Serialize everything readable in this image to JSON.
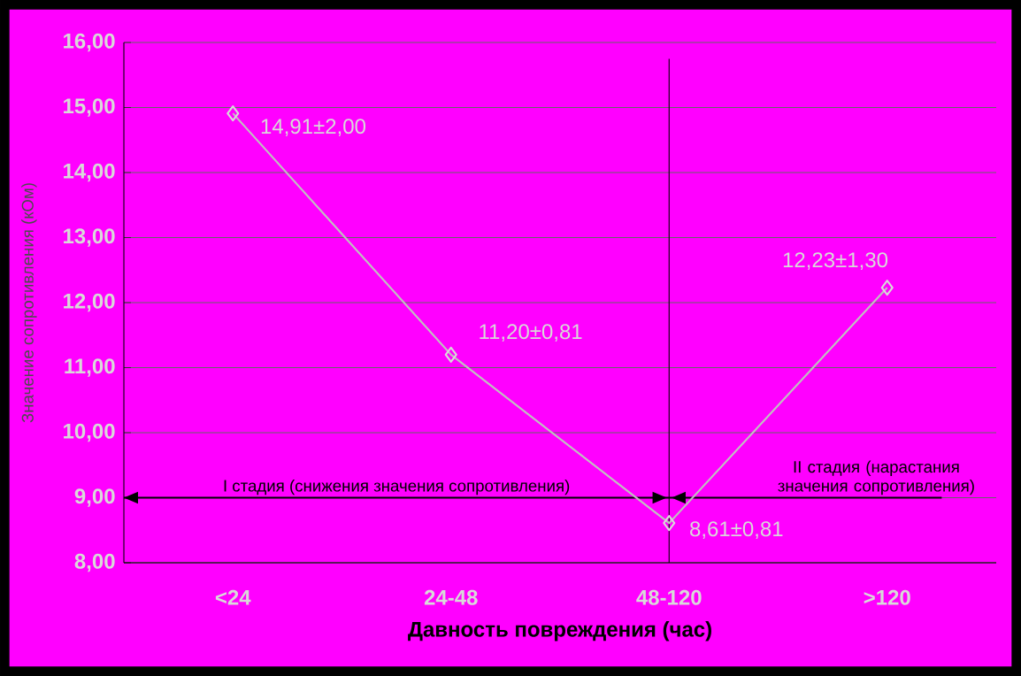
{
  "chart_data": {
    "type": "line",
    "xlabel": "Давность повреждения (час)",
    "ylabel": "Значение сопротивления (кОм)",
    "categories": [
      "<24",
      "24-48",
      "48-120",
      ">120"
    ],
    "series": [
      {
        "color": "#c0c0c0",
        "values": [
          14.91,
          11.2,
          8.61,
          12.23
        ],
        "value_labels": [
          "14,91±2,00",
          "11,20±0,81",
          "8,61±0,81",
          "12,23±1,30"
        ]
      }
    ],
    "marker": "diamond",
    "ylim": [
      8,
      16
    ],
    "yticks": [
      {
        "value": 8,
        "label": "8,00"
      },
      {
        "value": 9,
        "label": "9,00"
      },
      {
        "value": 10,
        "label": "10,00"
      },
      {
        "value": 11,
        "label": "11,00"
      },
      {
        "value": 12,
        "label": "12,00"
      },
      {
        "value": 13,
        "label": "13,00"
      },
      {
        "value": 14,
        "label": "14,00"
      },
      {
        "value": 15,
        "label": "15,00"
      },
      {
        "value": 16,
        "label": "16,00"
      }
    ],
    "grid": "y",
    "ref_lines": [
      {
        "axis": "x",
        "value": "48-120",
        "color": "#000000"
      },
      {
        "axis": "y",
        "value": 9,
        "color": "#000000"
      }
    ],
    "annotations": [
      "I стадия (снижения значения сопротивления)",
      "II стадия (нарастания значения сопротивления)"
    ]
  }
}
